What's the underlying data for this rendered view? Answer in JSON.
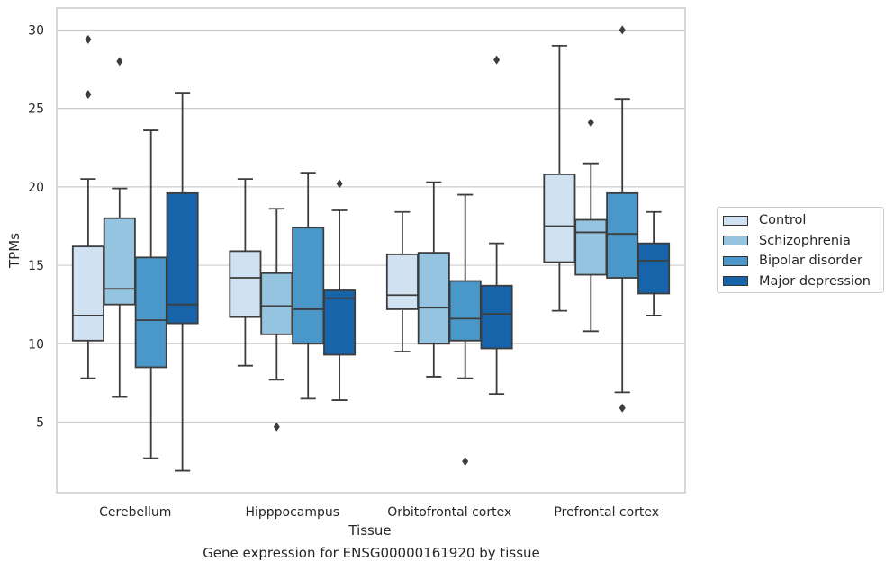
{
  "chart_data": {
    "type": "box",
    "title": "",
    "xlabel": "Tissue",
    "ylabel": "TPMs",
    "caption": "Gene expression for ENSG00000161920 by tissue",
    "ylim": [
      0.5,
      31.4
    ],
    "yticks": [
      5,
      10,
      15,
      20,
      25,
      30
    ],
    "grid": "horizontal",
    "legend_position": "right",
    "categories": [
      "Cerebellum",
      "Hipppocampus",
      "Orbitofrontal cortex",
      "Prefrontal cortex"
    ],
    "series": [
      {
        "name": "Control",
        "color": "#d0e1f2",
        "boxes": [
          {
            "whislo": 7.8,
            "q1": 10.2,
            "med": 11.8,
            "q3": 16.2,
            "whishi": 20.5,
            "fliers": []
          },
          {
            "whislo": 8.6,
            "q1": 11.7,
            "med": 14.2,
            "q3": 15.9,
            "whishi": 20.5,
            "fliers": []
          },
          {
            "whislo": 9.5,
            "q1": 12.2,
            "med": 13.1,
            "q3": 15.7,
            "whishi": 18.4,
            "fliers": []
          },
          {
            "whislo": 12.1,
            "q1": 15.2,
            "med": 17.5,
            "q3": 20.8,
            "whishi": 29.0,
            "fliers": []
          }
        ]
      },
      {
        "name": "Schizophrenia",
        "color": "#94c4df",
        "boxes": [
          {
            "whislo": 6.6,
            "q1": 12.5,
            "med": 13.5,
            "q3": 18.0,
            "whishi": 19.9,
            "fliers": [
              28.0
            ]
          },
          {
            "whislo": 7.7,
            "q1": 10.6,
            "med": 12.4,
            "q3": 14.5,
            "whishi": 18.6,
            "fliers": [
              4.7
            ]
          },
          {
            "whislo": 7.9,
            "q1": 10.0,
            "med": 12.3,
            "q3": 15.8,
            "whishi": 20.3,
            "fliers": []
          },
          {
            "whislo": 10.8,
            "q1": 14.4,
            "med": 17.1,
            "q3": 17.9,
            "whishi": 21.5,
            "fliers": [
              24.1
            ]
          }
        ]
      },
      {
        "name": "Bipolar disorder",
        "color": "#4a98c9",
        "boxes": [
          {
            "whislo": 2.7,
            "q1": 8.5,
            "med": 11.5,
            "q3": 15.5,
            "whishi": 23.6,
            "fliers": []
          },
          {
            "whislo": 6.5,
            "q1": 10.0,
            "med": 12.2,
            "q3": 17.4,
            "whishi": 20.9,
            "fliers": []
          },
          {
            "whislo": 7.8,
            "q1": 10.2,
            "med": 11.6,
            "q3": 14.0,
            "whishi": 19.5,
            "fliers": [
              2.5
            ]
          },
          {
            "whislo": 6.9,
            "q1": 14.2,
            "med": 17.0,
            "q3": 19.6,
            "whishi": 25.6,
            "fliers": [
              30.0,
              5.9
            ]
          }
        ]
      },
      {
        "name": "Major depression",
        "color": "#1764ab",
        "boxes": [
          {
            "whislo": 1.9,
            "q1": 11.3,
            "med": 12.5,
            "q3": 19.6,
            "whishi": 26.0,
            "fliers": []
          },
          {
            "whislo": 6.4,
            "q1": 9.3,
            "med": 12.9,
            "q3": 13.4,
            "whishi": 18.5,
            "fliers": [
              20.2
            ]
          },
          {
            "whislo": 6.8,
            "q1": 9.7,
            "med": 11.9,
            "q3": 13.7,
            "whishi": 16.4,
            "fliers": [
              28.1
            ]
          },
          {
            "whislo": 11.8,
            "q1": 13.2,
            "med": 15.3,
            "q3": 16.4,
            "whishi": 18.4,
            "fliers": []
          }
        ]
      }
    ],
    "cerebellum_control_extra_fliers": [
      29.4,
      25.9
    ]
  }
}
